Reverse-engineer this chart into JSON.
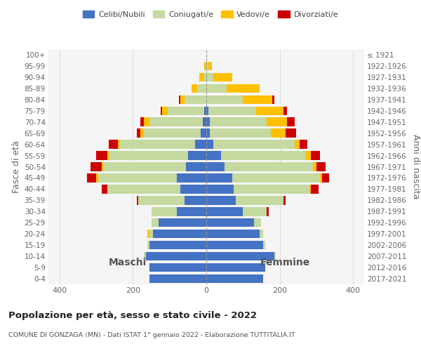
{
  "age_groups": [
    "0-4",
    "5-9",
    "10-14",
    "15-19",
    "20-24",
    "25-29",
    "30-34",
    "35-39",
    "40-44",
    "45-49",
    "50-54",
    "55-59",
    "60-64",
    "65-69",
    "70-74",
    "75-79",
    "80-84",
    "85-89",
    "90-94",
    "95-99",
    "100+"
  ],
  "birth_years": [
    "2017-2021",
    "2012-2016",
    "2007-2011",
    "2002-2006",
    "1997-2001",
    "1992-1996",
    "1987-1991",
    "1982-1986",
    "1977-1981",
    "1972-1976",
    "1967-1971",
    "1962-1966",
    "1957-1961",
    "1952-1956",
    "1947-1951",
    "1942-1946",
    "1937-1941",
    "1932-1936",
    "1927-1931",
    "1922-1926",
    "≤ 1921"
  ],
  "males": {
    "celibi": [
      155,
      155,
      165,
      155,
      145,
      130,
      80,
      60,
      70,
      80,
      55,
      50,
      30,
      15,
      10,
      5,
      0,
      0,
      0,
      0,
      0
    ],
    "coniugati": [
      0,
      0,
      5,
      5,
      10,
      20,
      70,
      125,
      200,
      215,
      225,
      215,
      205,
      155,
      145,
      100,
      60,
      25,
      5,
      0,
      0
    ],
    "vedovi": [
      0,
      0,
      0,
      0,
      5,
      0,
      0,
      0,
      0,
      5,
      5,
      5,
      5,
      10,
      15,
      15,
      10,
      15,
      15,
      5,
      0
    ],
    "divorziati": [
      0,
      0,
      0,
      0,
      0,
      0,
      0,
      5,
      15,
      25,
      30,
      30,
      25,
      10,
      10,
      5,
      5,
      0,
      0,
      0,
      0
    ]
  },
  "females": {
    "nubili": [
      155,
      160,
      185,
      155,
      145,
      130,
      100,
      80,
      75,
      70,
      50,
      40,
      20,
      10,
      10,
      5,
      0,
      0,
      0,
      0,
      0
    ],
    "coniugate": [
      0,
      0,
      5,
      5,
      10,
      20,
      65,
      130,
      205,
      240,
      240,
      230,
      220,
      165,
      155,
      130,
      100,
      55,
      20,
      5,
      0
    ],
    "vedove": [
      0,
      0,
      0,
      0,
      0,
      0,
      0,
      0,
      5,
      5,
      10,
      15,
      15,
      40,
      55,
      75,
      80,
      90,
      50,
      10,
      0
    ],
    "divorziate": [
      0,
      0,
      0,
      0,
      0,
      0,
      5,
      5,
      20,
      20,
      25,
      25,
      20,
      30,
      20,
      10,
      5,
      0,
      0,
      0,
      0
    ]
  },
  "colors": {
    "celibi": "#4472c4",
    "coniugati": "#c5d9a0",
    "vedovi": "#ffc000",
    "divorziati": "#cc0000"
  },
  "xlim": 430,
  "title": "Popolazione per età, sesso e stato civile - 2022",
  "subtitle": "COMUNE DI GONZAGA (MN) - Dati ISTAT 1° gennaio 2022 - Elaborazione TUTTITALIA.IT",
  "xlabel_left": "Maschi",
  "xlabel_right": "Femmine",
  "ylabel_left": "Fasce di età",
  "ylabel_right": "Anni di nascita",
  "legend_labels": [
    "Celibi/Nubili",
    "Coniugati/e",
    "Vedovi/e",
    "Divorziati/e"
  ],
  "bg_color": "#f5f5f5",
  "grid_color": "#cccccc"
}
